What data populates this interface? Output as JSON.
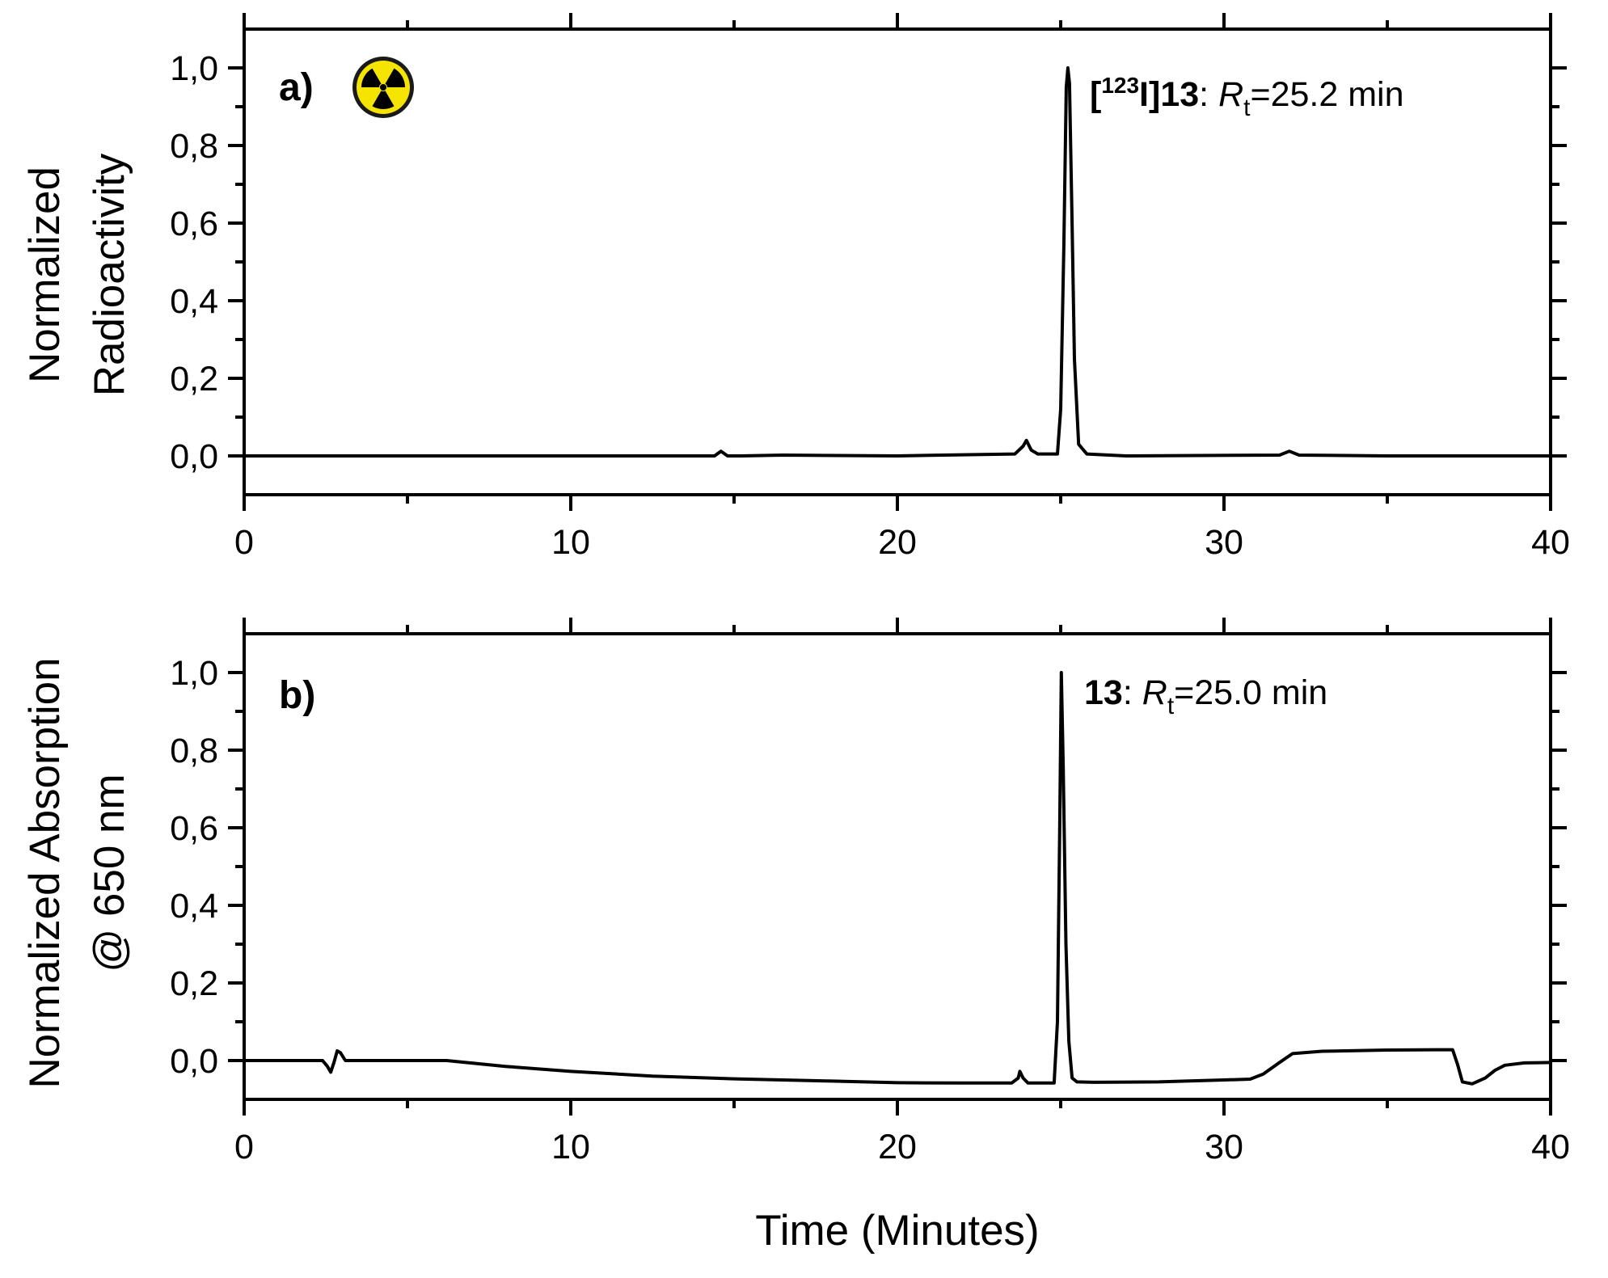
{
  "chart_data": [
    {
      "type": "line",
      "panel_label": "a)",
      "icon": "radiation-hazard-icon",
      "icon_colors": {
        "fill": "#f5e400",
        "symbol": "#000000",
        "ring": "#1a1a1a"
      },
      "ylabel_lines": [
        "Normalized",
        "Radioactivity"
      ],
      "xlabel": "",
      "xlim": [
        0,
        40
      ],
      "ylim": [
        -0.1,
        1.1
      ],
      "x_ticks": [
        0,
        10,
        20,
        30,
        40
      ],
      "x_tick_labels": [
        "0",
        "10",
        "20",
        "30",
        "40"
      ],
      "y_ticks": [
        0,
        0.2,
        0.4,
        0.6,
        0.8,
        1.0
      ],
      "y_tick_labels": [
        "0,0",
        "0,2",
        "0,4",
        "0,6",
        "0,8",
        "1,0"
      ],
      "grid": false,
      "annotation": {
        "compound_open": "[",
        "isotope": "123",
        "element": "I]",
        "compound": "13",
        "colon": ":",
        "rt_symbol": "R",
        "rt_subscript": "t",
        "rt_value": "=25.2 min"
      },
      "series": [
        {
          "color": "#000000",
          "x": [
            0,
            5,
            10,
            14.4,
            14.6,
            14.8,
            15.2,
            16.5,
            20,
            22,
            23.6,
            23.85,
            23.95,
            24.1,
            24.3,
            24.9,
            25.0,
            25.1,
            25.17,
            25.22,
            25.27,
            25.35,
            25.42,
            25.55,
            25.8,
            27,
            31.7,
            32.0,
            32.3,
            35,
            40
          ],
          "y": [
            0.0,
            0.0,
            0.0,
            0.0,
            0.012,
            0.0,
            0.0,
            0.002,
            0.0,
            0.003,
            0.005,
            0.025,
            0.04,
            0.015,
            0.005,
            0.005,
            0.12,
            0.55,
            0.95,
            1.0,
            0.96,
            0.6,
            0.25,
            0.03,
            0.005,
            0.0,
            0.002,
            0.012,
            0.002,
            0.0,
            0.0
          ]
        }
      ]
    },
    {
      "type": "line",
      "panel_label": "b)",
      "ylabel_lines": [
        "Normalized Absorption",
        "@ 650 nm"
      ],
      "xlabel": "Time (Minutes)",
      "xlim": [
        0,
        40
      ],
      "ylim": [
        -0.1,
        1.1
      ],
      "x_ticks": [
        0,
        10,
        20,
        30,
        40
      ],
      "x_tick_labels": [
        "0",
        "10",
        "20",
        "30",
        "40"
      ],
      "y_ticks": [
        0,
        0.2,
        0.4,
        0.6,
        0.8,
        1.0
      ],
      "y_tick_labels": [
        "0,0",
        "0,2",
        "0,4",
        "0,6",
        "0,8",
        "1,0"
      ],
      "grid": false,
      "annotation": {
        "compound": "13",
        "colon": ":",
        "rt_symbol": "R",
        "rt_subscript": "t",
        "rt_value": "=25.0 min"
      },
      "series": [
        {
          "color": "#000000",
          "x": [
            0,
            2.4,
            2.55,
            2.65,
            2.75,
            2.85,
            2.95,
            3.1,
            3.3,
            6.2,
            8,
            10,
            12.5,
            15,
            18,
            20,
            22,
            23.5,
            23.7,
            23.75,
            23.85,
            24.0,
            24.8,
            24.9,
            24.97,
            25.02,
            25.08,
            25.16,
            25.25,
            25.35,
            25.5,
            26,
            28,
            30,
            30.8,
            31.2,
            31.7,
            32.1,
            33,
            35,
            36.5,
            37.0,
            37.15,
            37.3,
            37.6,
            38.0,
            38.3,
            38.6,
            39.2,
            40
          ],
          "y": [
            0.0,
            0.0,
            -0.015,
            -0.03,
            -0.005,
            0.025,
            0.02,
            0.0,
            0.0,
            0.0,
            -0.015,
            -0.028,
            -0.04,
            -0.047,
            -0.053,
            -0.057,
            -0.058,
            -0.058,
            -0.045,
            -0.028,
            -0.045,
            -0.058,
            -0.058,
            0.1,
            0.6,
            1.0,
            0.75,
            0.3,
            0.05,
            -0.045,
            -0.055,
            -0.056,
            -0.055,
            -0.05,
            -0.048,
            -0.035,
            -0.005,
            0.018,
            0.024,
            0.027,
            0.028,
            0.028,
            -0.01,
            -0.055,
            -0.06,
            -0.045,
            -0.025,
            -0.012,
            -0.006,
            -0.005
          ]
        }
      ]
    }
  ]
}
